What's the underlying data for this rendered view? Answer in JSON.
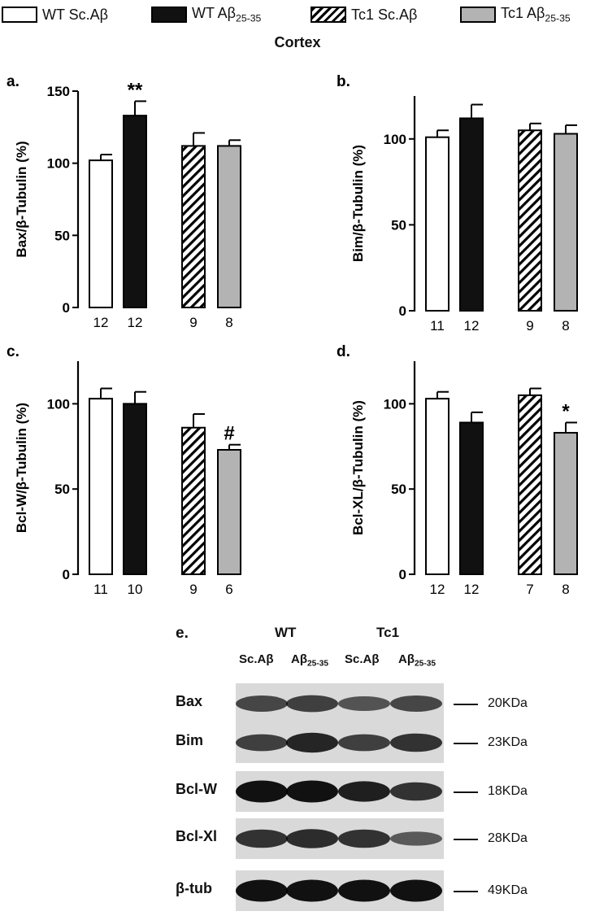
{
  "legend": [
    {
      "label": "WT Sc.Aβ",
      "sub": "",
      "fill": "white"
    },
    {
      "label": "WT Aβ",
      "sub": "25-35",
      "fill": "black"
    },
    {
      "label": "Tc1 Sc.Aβ",
      "sub": "",
      "fill": "hatch"
    },
    {
      "label": "Tc1 Aβ",
      "sub": "25-35",
      "fill": "gray"
    }
  ],
  "region_title": "Cortex",
  "colors": {
    "black": "#111111",
    "gray": "#b3b3b3",
    "white": "#ffffff",
    "outline": "#000000"
  },
  "chart_data": [
    {
      "panel": "a.",
      "type": "bar",
      "ylabel": "Bax/β-Tubulin (%)",
      "ylim": [
        0,
        150
      ],
      "yticks": [
        0,
        50,
        100,
        150
      ],
      "groups": [
        "WT Sc.Aβ",
        "WT Aβ25-35",
        "Tc1 Sc.Aβ",
        "Tc1 Aβ25-35"
      ],
      "values": [
        102,
        133,
        112,
        112
      ],
      "errors": [
        4,
        10,
        9,
        4
      ],
      "n": [
        "12",
        "12",
        "9",
        "8"
      ],
      "marks": [
        "",
        "**",
        "",
        ""
      ]
    },
    {
      "panel": "b.",
      "type": "bar",
      "ylabel": "Bim/β-Tubulin (%)",
      "ylim": [
        0,
        125
      ],
      "yticks": [
        0,
        50,
        100
      ],
      "groups": [
        "WT Sc.Aβ",
        "WT Aβ25-35",
        "Tc1 Sc.Aβ",
        "Tc1 Aβ25-35"
      ],
      "values": [
        101,
        112,
        105,
        103
      ],
      "errors": [
        4,
        8,
        4,
        5
      ],
      "n": [
        "11",
        "12",
        "9",
        "8"
      ],
      "marks": [
        "",
        "",
        "",
        ""
      ]
    },
    {
      "panel": "c.",
      "type": "bar",
      "ylabel": "Bcl-W/β-Tubulin (%)",
      "ylim": [
        0,
        125
      ],
      "yticks": [
        0,
        50,
        100
      ],
      "groups": [
        "WT Sc.Aβ",
        "WT Aβ25-35",
        "Tc1 Sc.Aβ",
        "Tc1 Aβ25-35"
      ],
      "values": [
        103,
        100,
        86,
        73
      ],
      "errors": [
        6,
        7,
        8,
        3
      ],
      "n": [
        "11",
        "10",
        "9",
        "6"
      ],
      "marks": [
        "",
        "",
        "",
        "#"
      ]
    },
    {
      "panel": "d.",
      "type": "bar",
      "ylabel": "Bcl-XL/β-Tubulin (%)",
      "ylim": [
        0,
        125
      ],
      "yticks": [
        0,
        50,
        100
      ],
      "groups": [
        "WT Sc.Aβ",
        "WT Aβ25-35",
        "Tc1 Sc.Aβ",
        "Tc1 Aβ25-35"
      ],
      "values": [
        103,
        89,
        105,
        83
      ],
      "errors": [
        4,
        6,
        4,
        6
      ],
      "n": [
        "12",
        "12",
        "7",
        "8"
      ],
      "marks": [
        "",
        "",
        "",
        "*"
      ]
    }
  ],
  "blot": {
    "panel": "e.",
    "groups": [
      "WT",
      "Tc1"
    ],
    "lanes": [
      {
        "label": "Sc.Aβ",
        "sub": ""
      },
      {
        "label": "Aβ",
        "sub": "25-35"
      },
      {
        "label": "Sc.Aβ",
        "sub": ""
      },
      {
        "label": "Aβ",
        "sub": "25-35"
      }
    ],
    "rows": [
      {
        "label": "Bax",
        "kda": "20KDa",
        "intensity": [
          0.55,
          0.6,
          0.45,
          0.55
        ]
      },
      {
        "label": "Bim",
        "kda": "23KDa",
        "intensity": [
          0.6,
          0.8,
          0.6,
          0.7
        ]
      },
      {
        "label": "Bcl-W",
        "kda": "18KDa",
        "intensity": [
          0.95,
          0.95,
          0.85,
          0.7
        ]
      },
      {
        "label": "Bcl-Xl",
        "kda": "28KDa",
        "intensity": [
          0.7,
          0.75,
          0.7,
          0.4
        ]
      },
      {
        "label": "β-tub",
        "kda": "49KDa",
        "intensity": [
          0.95,
          0.95,
          0.95,
          0.95
        ]
      }
    ]
  }
}
